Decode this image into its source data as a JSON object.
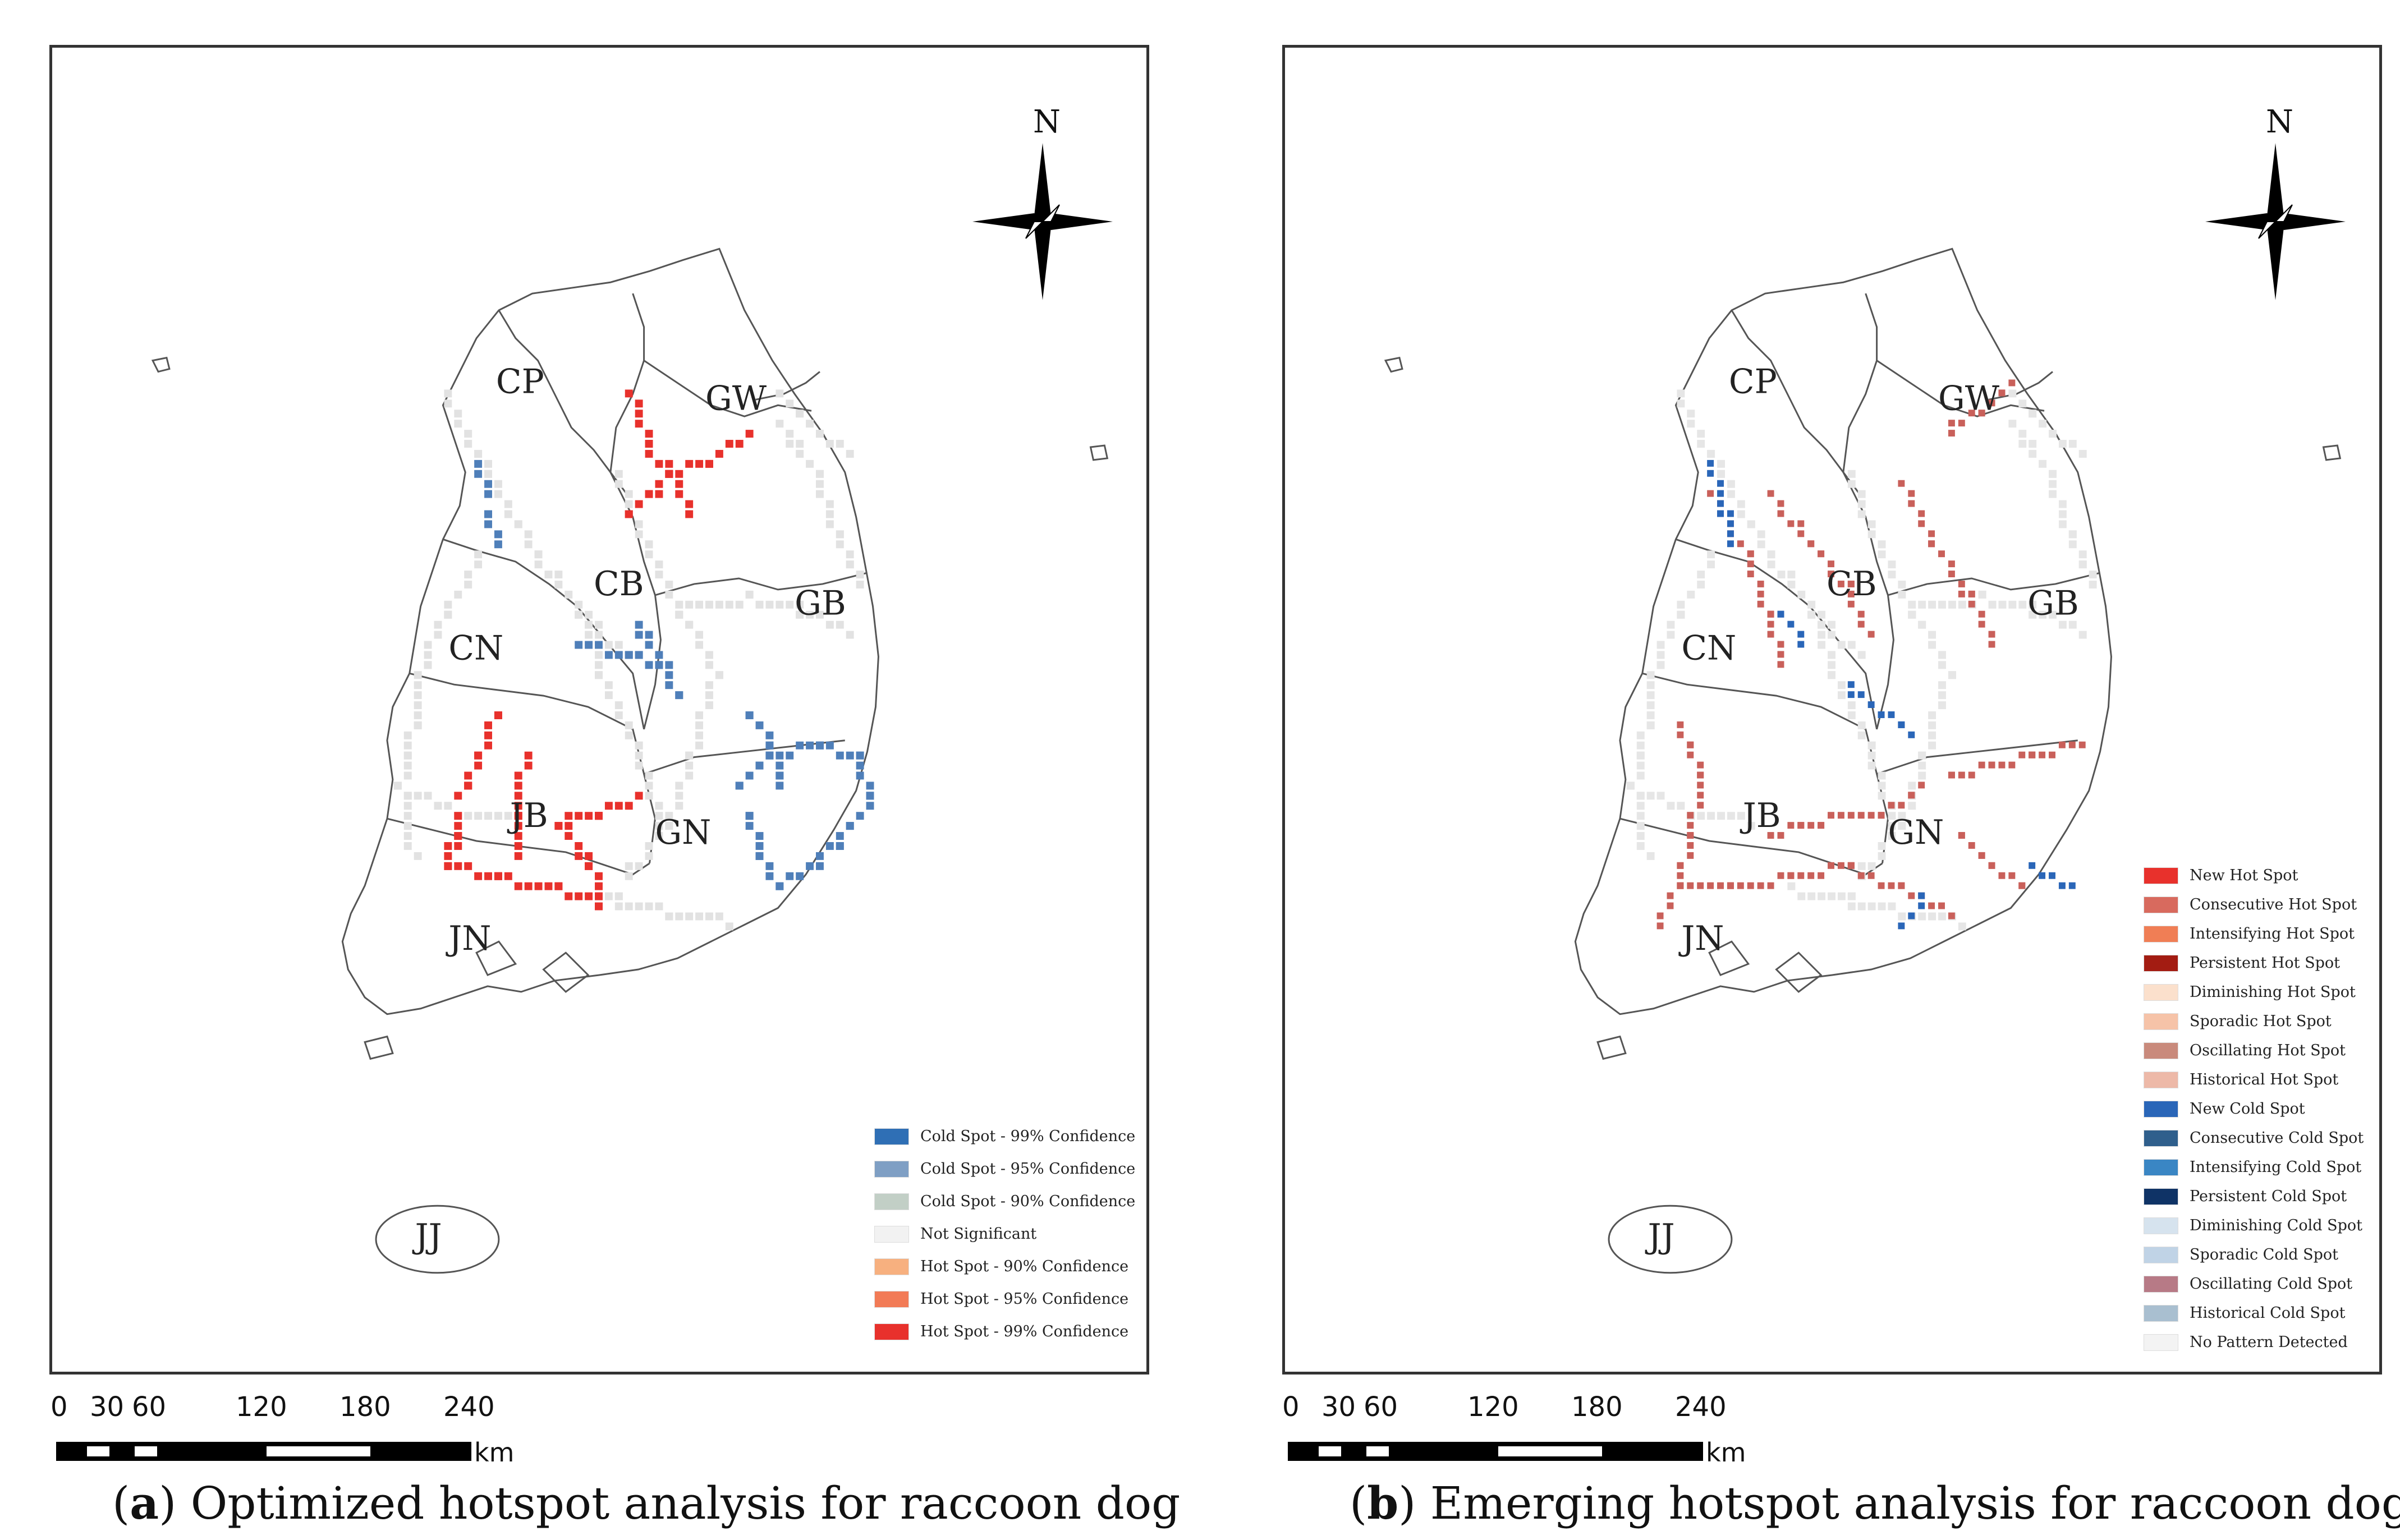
{
  "compass_label": "N",
  "regions": [
    "CP",
    "GW",
    "CB",
    "GB",
    "CN",
    "JB",
    "GN",
    "JN",
    "JJ"
  ],
  "panel_a": {
    "legend": [
      {
        "label": "Cold Spot - 99% Confidence",
        "color": "#2f6fb5"
      },
      {
        "label": "Cold Spot - 95% Confidence",
        "color": "#7f9fc4"
      },
      {
        "label": "Cold Spot - 90% Confidence",
        "color": "#c2cfc6"
      },
      {
        "label": "Not Significant",
        "color": "#f2f2f2"
      },
      {
        "label": "Hot Spot - 90% Confidence",
        "color": "#f7b07f"
      },
      {
        "label": "Hot Spot - 95% Confidence",
        "color": "#f27b56"
      },
      {
        "label": "Hot Spot - 99% Confidence",
        "color": "#e8312c"
      }
    ]
  },
  "panel_b": {
    "legend": [
      {
        "label": "New Hot Spot",
        "color": "#e8312c"
      },
      {
        "label": "Consecutive Hot Spot",
        "color": "#d86a5e"
      },
      {
        "label": "Intensifying Hot Spot",
        "color": "#f07e55"
      },
      {
        "label": "Persistent Hot Spot",
        "color": "#a31c12"
      },
      {
        "label": "Diminishing Hot Spot",
        "color": "#fbe0cc"
      },
      {
        "label": "Sporadic Hot Spot",
        "color": "#f6c3a8"
      },
      {
        "label": "Oscillating Hot Spot",
        "color": "#c98a7c"
      },
      {
        "label": "Historical Hot Spot",
        "color": "#edb9a8"
      },
      {
        "label": "New Cold Spot",
        "color": "#2a66b8"
      },
      {
        "label": "Consecutive Cold Spot",
        "color": "#2f5f8c"
      },
      {
        "label": "Intensifying Cold Spot",
        "color": "#3a86c4"
      },
      {
        "label": "Persistent Cold Spot",
        "color": "#0f3366"
      },
      {
        "label": "Diminishing Cold Spot",
        "color": "#d6e3ee"
      },
      {
        "label": "Sporadic Cold Spot",
        "color": "#c0d3e6"
      },
      {
        "label": "Oscillating Cold Spot",
        "color": "#b77a86"
      },
      {
        "label": "Historical Cold Spot",
        "color": "#a9bfd0"
      },
      {
        "label": "No Pattern Detected",
        "color": "#f3f3f3"
      }
    ]
  },
  "scale": {
    "ticks": [
      "0",
      "30",
      "60",
      "120",
      "180",
      "240"
    ],
    "unit": "km"
  },
  "captions": {
    "a_letter": "a",
    "a_text": ") Optimized hotspot analysis for raccoon dog",
    "b_letter": "b",
    "b_text": ") Emerging hotspot analysis for raccoon dog"
  }
}
